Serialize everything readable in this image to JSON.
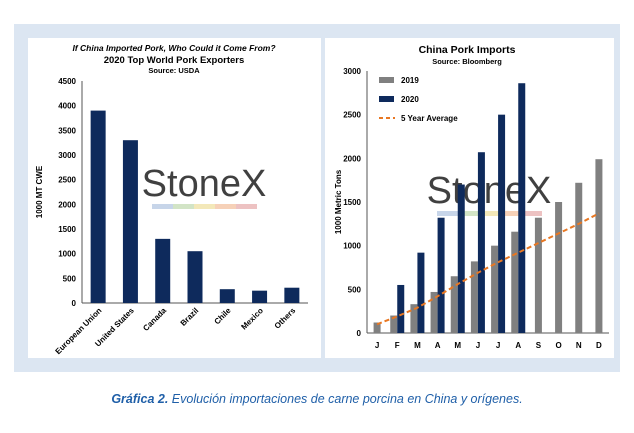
{
  "caption": {
    "label": "Gráfica 2.",
    "text": "Evolución importaciones de carne porcina en China y orígenes."
  },
  "watermark": "StoneX",
  "chart_data": [
    {
      "type": "bar",
      "title": "2020 Top World Pork Exporters",
      "pretitle": "If China Imported Pork, Who Could it Come From?",
      "subtitle": "Source: USDA",
      "ylabel": "1000 MT CWE",
      "xlabel": "",
      "ylim": [
        0,
        4500
      ],
      "yticks": [
        0,
        500,
        1000,
        1500,
        2000,
        2500,
        3000,
        3500,
        4000,
        4500
      ],
      "categories": [
        "European Union",
        "United States",
        "Canada",
        "Brazil",
        "Chile",
        "Mexico",
        "Others"
      ],
      "series": [
        {
          "values": [
            3900,
            3300,
            1300,
            1050,
            280,
            250,
            310
          ],
          "color": "#0e2a5c"
        }
      ],
      "grid": false,
      "legend": "none"
    },
    {
      "type": "bar",
      "title": "China Pork Imports",
      "subtitle": "Source: Bloomberg",
      "ylabel": "1000 Metric Tons",
      "xlabel": "",
      "ylim": [
        0,
        3000
      ],
      "yticks": [
        0,
        500,
        1000,
        1500,
        2000,
        2500,
        3000
      ],
      "categories": [
        "J",
        "F",
        "M",
        "A",
        "M",
        "J",
        "J",
        "A",
        "S",
        "O",
        "N",
        "D"
      ],
      "series": [
        {
          "name": "2019",
          "type": "bar",
          "color": "#808080",
          "values": [
            120,
            200,
            330,
            470,
            650,
            820,
            1000,
            1160,
            1320,
            1500,
            1720,
            1990
          ]
        },
        {
          "name": "2020",
          "type": "bar",
          "color": "#0e2a5c",
          "values": [
            null,
            550,
            920,
            1320,
            1700,
            2070,
            2500,
            2860,
            null,
            null,
            null,
            null
          ]
        },
        {
          "name": "5 Year Average",
          "type": "line",
          "style": "dashed",
          "color": "#e87722",
          "values": [
            100,
            190,
            290,
            420,
            560,
            690,
            810,
            920,
            1030,
            1140,
            1250,
            1370
          ]
        }
      ],
      "grid": false,
      "legend": "top-left"
    }
  ]
}
